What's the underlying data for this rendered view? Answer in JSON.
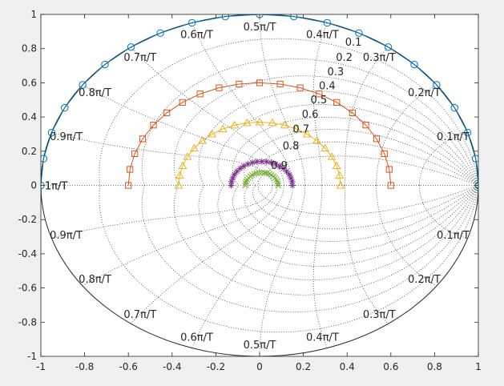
{
  "chart_data": {
    "type": "scatter",
    "title": "",
    "xlabel": "",
    "ylabel": "",
    "xlim": [
      -1,
      1
    ],
    "ylim": [
      -1,
      1
    ],
    "x_ticks": [
      -1,
      -0.8,
      -0.6,
      -0.4,
      -0.2,
      0,
      0.2,
      0.4,
      0.6,
      0.8,
      1
    ],
    "y_ticks": [
      -1,
      -0.8,
      -0.6,
      -0.4,
      -0.2,
      0,
      0.2,
      0.4,
      0.6,
      0.8,
      1
    ],
    "x_tick_labels": [
      "-1",
      "-0.8",
      "-0.6",
      "-0.4",
      "-0.2",
      "0",
      "0.2",
      "0.4",
      "0.6",
      "0.8",
      "1"
    ],
    "y_tick_labels": [
      "-1",
      "-0.8",
      "-0.6",
      "-0.4",
      "-0.2",
      "0",
      "0.2",
      "0.4",
      "0.6",
      "0.8",
      "1"
    ],
    "grid": "zgrid (damping ratio and natural frequency lines)",
    "damping_labels": [
      {
        "text": "0.1",
        "zeta": 0.1
      },
      {
        "text": "0.2",
        "zeta": 0.2
      },
      {
        "text": "0.3",
        "zeta": 0.3
      },
      {
        "text": "0.4",
        "zeta": 0.4
      },
      {
        "text": "0.5",
        "zeta": 0.5
      },
      {
        "text": "0.6",
        "zeta": 0.6
      },
      {
        "text": "0.7",
        "zeta": 0.7
      },
      {
        "text": "0.8",
        "zeta": 0.8
      },
      {
        "text": "0.9",
        "zeta": 0.9
      }
    ],
    "frequency_labels": [
      {
        "text": "0.1π/T",
        "wn": 0.1
      },
      {
        "text": "0.2π/T",
        "wn": 0.2
      },
      {
        "text": "0.3π/T",
        "wn": 0.3
      },
      {
        "text": "0.4π/T",
        "wn": 0.4
      },
      {
        "text": "0.5π/T",
        "wn": 0.5
      },
      {
        "text": "0.6π/T",
        "wn": 0.6
      },
      {
        "text": "0.7π/T",
        "wn": 0.7
      },
      {
        "text": "0.8π/T",
        "wn": 0.8
      },
      {
        "text": "0.9π/T",
        "wn": 0.9
      },
      {
        "text": "1π/T",
        "wn": 1.0
      }
    ],
    "unit_circle": {
      "x_center": 0,
      "y_center": 0,
      "radius": 1
    },
    "series": [
      {
        "marker": "circle",
        "color": "#0072BD",
        "radius": 1.0,
        "x_center": 0,
        "count": 21,
        "line": true
      },
      {
        "marker": "square",
        "color": "#D95319",
        "radius": 0.6,
        "x_center": 0,
        "count": 21,
        "line": true
      },
      {
        "marker": "triangle",
        "color": "#EDB120",
        "radius": 0.37,
        "x_center": 0,
        "count": 21,
        "line": true
      },
      {
        "marker": "asterisk",
        "color": "#7E2F8E",
        "radius": 0.14,
        "x_center": 0.01,
        "count": 21,
        "line": false
      },
      {
        "marker": "x-marker",
        "color": "#77AC30",
        "radius": 0.075,
        "x_center": 0.01,
        "count": 21,
        "line": false
      }
    ]
  }
}
